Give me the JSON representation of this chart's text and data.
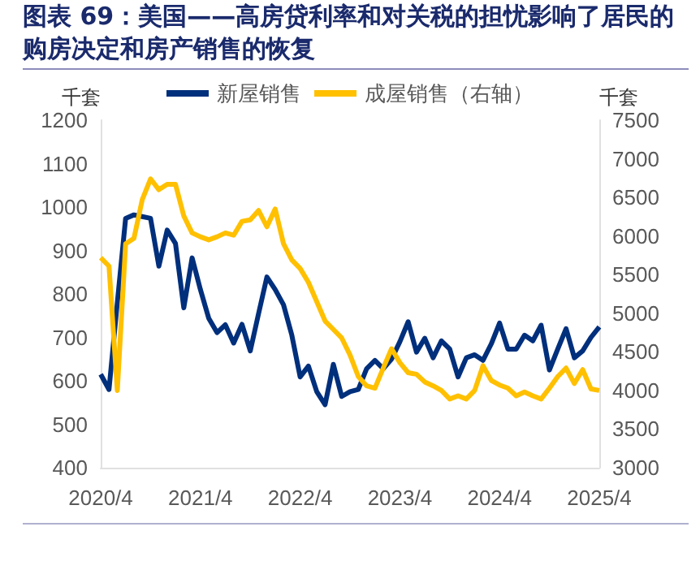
{
  "chart_data": {
    "type": "line",
    "title": "图表 69：美国——高房贷利率和对关税的担忧影响了居民的购房决定和房产销售的恢复",
    "ylabel": "千套",
    "y2label": "千套",
    "categories": [
      "2020/4",
      null,
      null,
      null,
      null,
      null,
      null,
      null,
      null,
      null,
      null,
      null,
      "2021/4",
      null,
      null,
      null,
      null,
      null,
      null,
      null,
      null,
      null,
      null,
      null,
      "2022/4",
      null,
      null,
      null,
      null,
      null,
      null,
      null,
      null,
      null,
      null,
      null,
      "2023/4",
      null,
      null,
      null,
      null,
      null,
      null,
      null,
      null,
      null,
      null,
      null,
      "2024/4",
      null,
      null,
      null,
      null,
      null,
      null,
      null,
      null,
      null,
      null,
      null,
      "2025/4"
    ],
    "series": [
      {
        "name": "新屋销售",
        "color": "#002f7c",
        "values": [
          615,
          580,
          780,
          974,
          982,
          978,
          974,
          864,
          947,
          916,
          768,
          883,
          810,
          744,
          711,
          729,
          687,
          730,
          669,
          755,
          839,
          810,
          775,
          705,
          609,
          634,
          575,
          545,
          638,
          564,
          575,
          580,
          628,
          647,
          628,
          650,
          690,
          736,
          666,
          698,
          653,
          692,
          673,
          609,
          653,
          660,
          647,
          685,
          733,
          673,
          673,
          705,
          692,
          728,
          625,
          673,
          720,
          653,
          669,
          700,
          724
        ]
      },
      {
        "name": "成屋销售（右轴）",
        "color": "#ffc000",
        "axis": "y2",
        "values": [
          5720,
          5610,
          4000,
          5900,
          5970,
          6470,
          6740,
          6600,
          6670,
          6670,
          6260,
          6040,
          5990,
          5950,
          5990,
          6040,
          6010,
          6190,
          6210,
          6330,
          6120,
          6350,
          5900,
          5690,
          5580,
          5400,
          5150,
          4900,
          4790,
          4680,
          4460,
          4180,
          4060,
          4030,
          4290,
          4540,
          4360,
          4230,
          4210,
          4110,
          4060,
          4000,
          3890,
          3930,
          3890,
          4000,
          4320,
          4130,
          4070,
          4030,
          3930,
          3980,
          3930,
          3890,
          4030,
          4180,
          4290,
          4090,
          4270,
          4020,
          4000
        ]
      }
    ],
    "ylim": [
      400,
      1200
    ],
    "yticks": [
      400,
      500,
      600,
      700,
      800,
      900,
      1000,
      1100,
      1200
    ],
    "y2lim": [
      3000,
      7500
    ],
    "y2ticks": [
      3000,
      3500,
      4000,
      4500,
      5000,
      5500,
      6000,
      6500,
      7000,
      7500
    ],
    "legend": "top",
    "grid": false,
    "marker": "none",
    "line_style": "solid"
  }
}
